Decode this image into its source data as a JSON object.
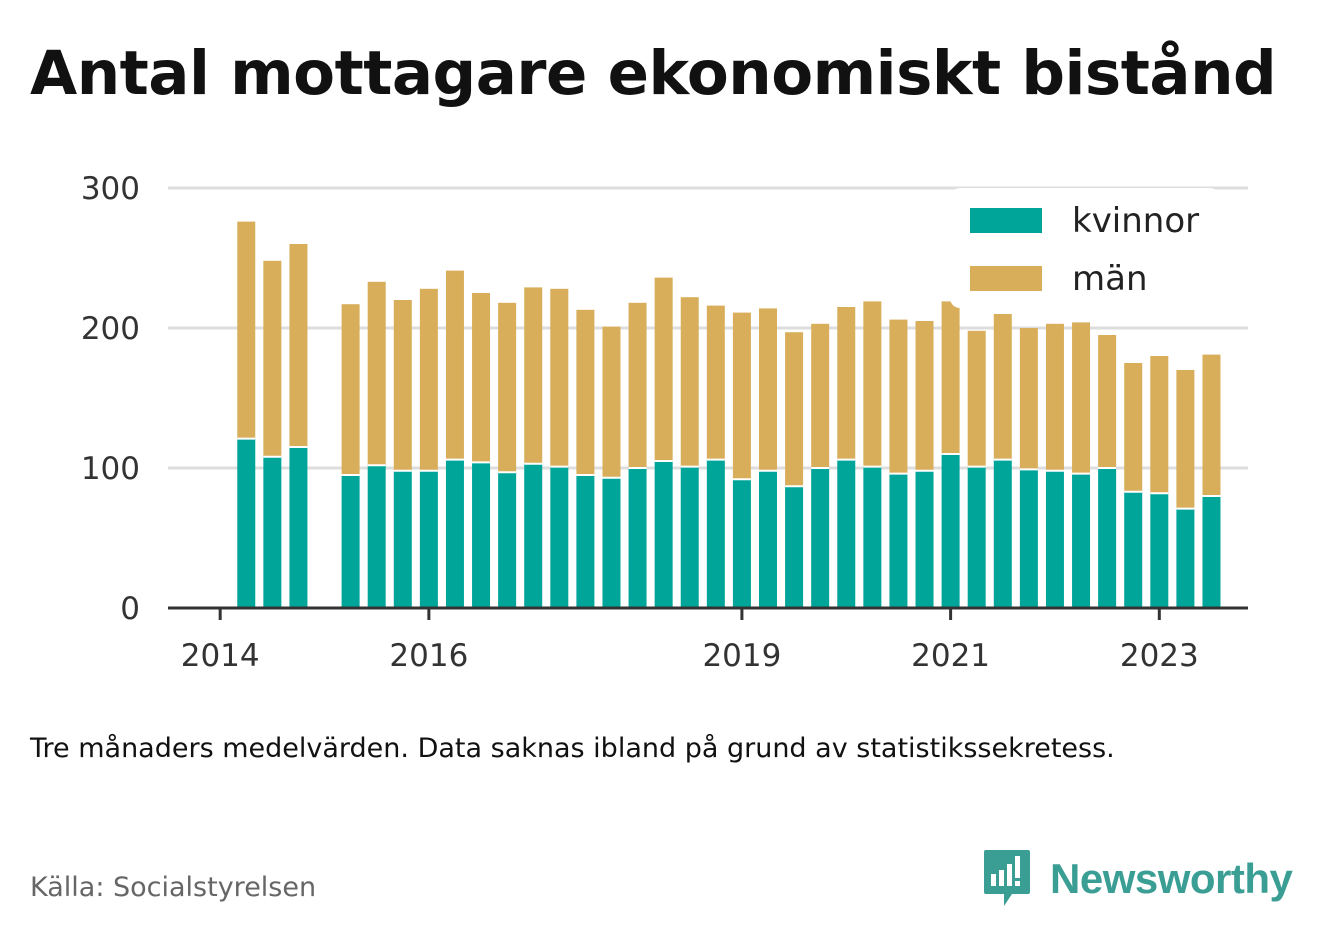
{
  "title": "Antal mottagare ekonomiskt bistånd",
  "note": "Tre månaders medelvärden. Data saknas ibland på grund av statistikssekretess.",
  "source": "Källa: Socialstyrelsen",
  "brand": "Newsworthy",
  "colors": {
    "kvinnor": "#00a59a",
    "man": "#d9ae5b",
    "grid": "#dddddd",
    "axis": "#333333",
    "brand": "#3a9e94"
  },
  "chart_data": {
    "type": "bar",
    "stacked": true,
    "ylim": [
      0,
      300
    ],
    "yticks": [
      0,
      100,
      200,
      300
    ],
    "xticks": [
      {
        "label": "2014",
        "x": 2014.0
      },
      {
        "label": "2016",
        "x": 2016.0
      },
      {
        "label": "2019",
        "x": 2019.0
      },
      {
        "label": "2021",
        "x": 2021.0
      },
      {
        "label": "2023",
        "x": 2023.0
      }
    ],
    "x": [
      2014.25,
      2014.5,
      2014.75,
      2015.25,
      2015.5,
      2015.75,
      2016.0,
      2016.25,
      2016.5,
      2016.75,
      2017.0,
      2017.25,
      2017.5,
      2017.75,
      2018.0,
      2018.25,
      2018.5,
      2018.75,
      2019.0,
      2019.25,
      2019.5,
      2019.75,
      2020.0,
      2020.25,
      2020.5,
      2020.75,
      2021.0,
      2021.25,
      2021.5,
      2021.75,
      2022.0,
      2022.25,
      2022.5,
      2022.75,
      2023.0,
      2023.25,
      2023.5
    ],
    "series": [
      {
        "name": "kvinnor",
        "values": [
          121,
          108,
          115,
          95,
          102,
          98,
          98,
          106,
          104,
          97,
          103,
          101,
          95,
          93,
          100,
          105,
          101,
          106,
          92,
          98,
          87,
          100,
          106,
          101,
          96,
          98,
          110,
          101,
          106,
          99,
          98,
          96,
          100,
          83,
          82,
          71,
          80
        ]
      },
      {
        "name": "män",
        "values": [
          155,
          140,
          145,
          122,
          131,
          122,
          130,
          135,
          121,
          121,
          126,
          127,
          118,
          108,
          118,
          131,
          121,
          110,
          119,
          116,
          110,
          103,
          109,
          118,
          110,
          107,
          109,
          97,
          104,
          101,
          105,
          108,
          95,
          92,
          98,
          99,
          101
        ]
      }
    ],
    "legend": {
      "position": "top-right",
      "entries": [
        "kvinnor",
        "män"
      ]
    }
  }
}
